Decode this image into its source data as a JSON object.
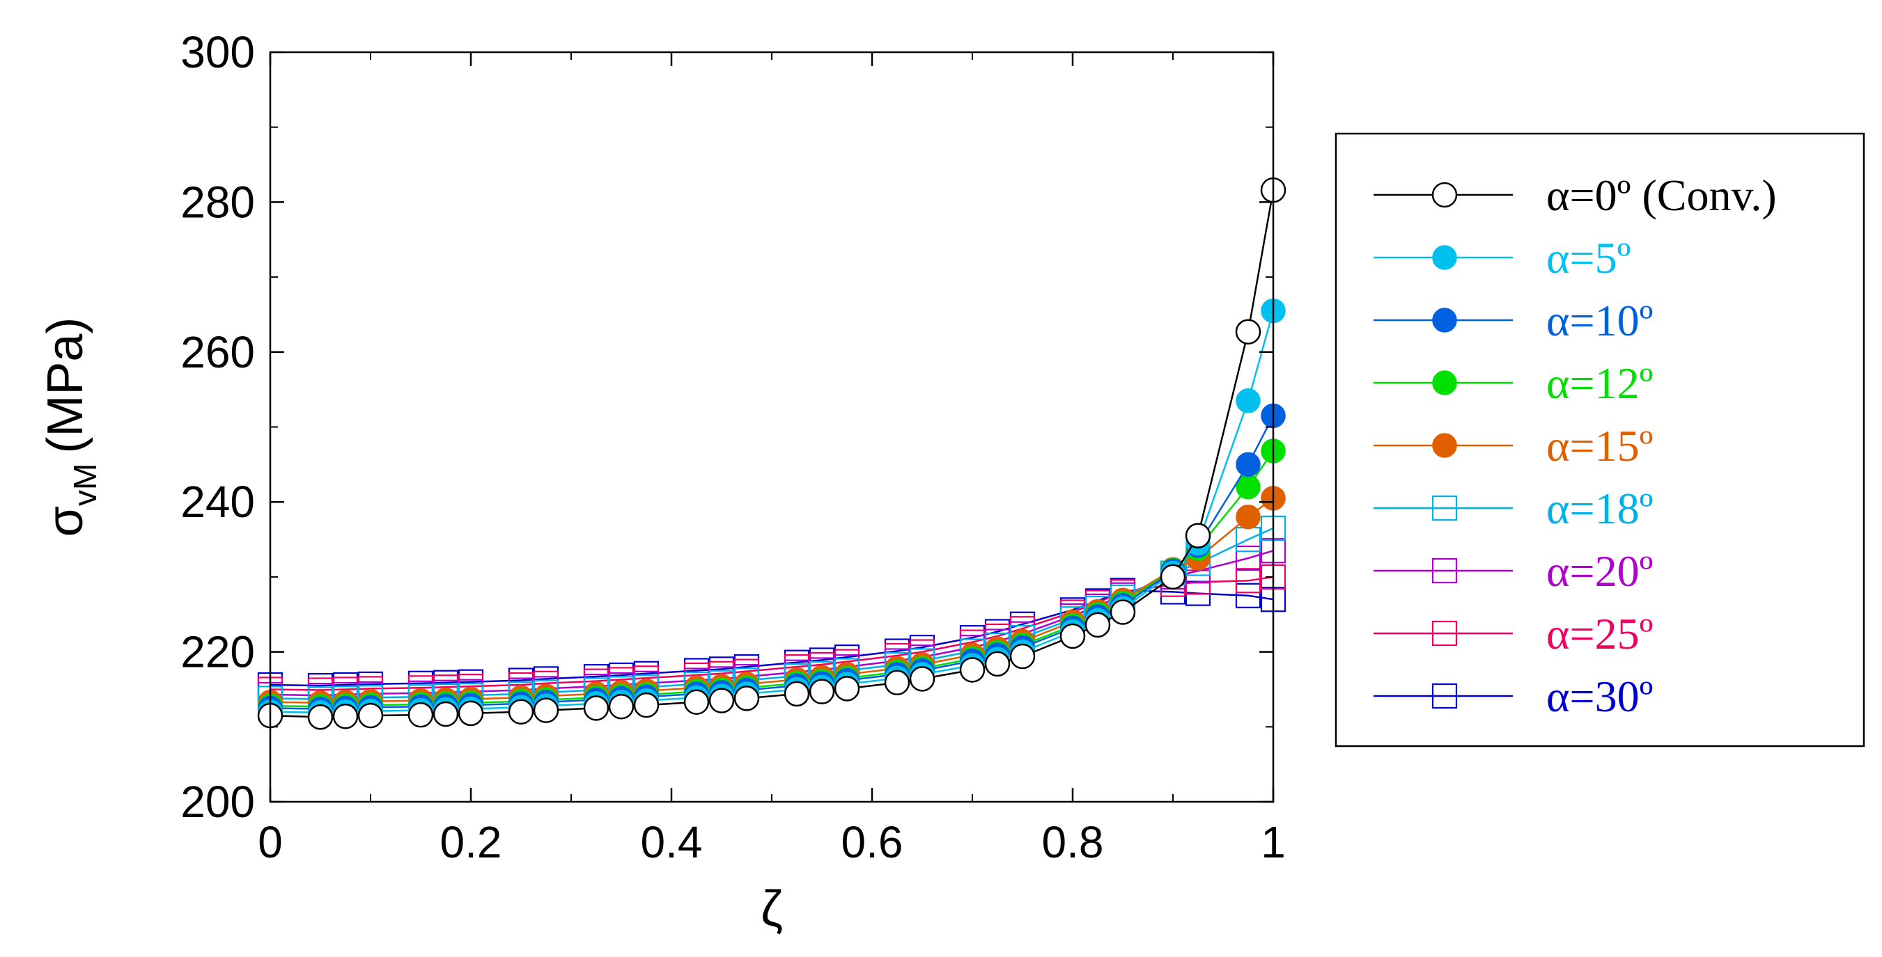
{
  "chart_data": {
    "type": "line",
    "xlabel": "ζ",
    "ylabel_main": "σ",
    "ylabel_sub": "vM",
    "ylabel_unit": "(MPa)",
    "xlim": [
      0,
      1
    ],
    "ylim": [
      200,
      300
    ],
    "x_ticks": [
      "0",
      "0.2",
      "0.4",
      "0.6",
      "0.8",
      "1"
    ],
    "y_ticks": [
      "200",
      "220",
      "240",
      "260",
      "280",
      "300"
    ],
    "grid": false,
    "legend_position": "right",
    "x": [
      0,
      0.05,
      0.075,
      0.1,
      0.15,
      0.175,
      0.2,
      0.25,
      0.275,
      0.325,
      0.35,
      0.375,
      0.425,
      0.45,
      0.475,
      0.525,
      0.55,
      0.575,
      0.625,
      0.65,
      0.7,
      0.725,
      0.75,
      0.8,
      0.825,
      0.85,
      0.9,
      0.925,
      0.975,
      1.0
    ],
    "series": [
      {
        "name": "α=0º (Conv.)",
        "color": "#000000",
        "marker": "open-circle",
        "values": [
          211.5,
          211.3,
          211.4,
          211.5,
          211.6,
          211.7,
          211.8,
          212.0,
          212.2,
          212.5,
          212.7,
          212.9,
          213.3,
          213.5,
          213.8,
          214.4,
          214.7,
          215.1,
          215.9,
          216.4,
          217.6,
          218.4,
          219.4,
          222.1,
          223.6,
          225.3,
          230.0,
          235.5,
          262.7,
          281.6
        ]
      },
      {
        "name": "α=5º",
        "color": "#00c0f0",
        "marker": "filled-circle",
        "values": [
          212.0,
          211.9,
          212.0,
          212.1,
          212.2,
          212.3,
          212.4,
          212.6,
          212.8,
          213.1,
          213.3,
          213.5,
          213.9,
          214.1,
          214.4,
          215.0,
          215.3,
          215.7,
          216.5,
          217.0,
          218.2,
          219.0,
          220.0,
          222.7,
          224.2,
          225.8,
          230.5,
          234.5,
          253.5,
          265.5
        ]
      },
      {
        "name": "α=10º",
        "color": "#0060e0",
        "marker": "filled-circle",
        "values": [
          212.5,
          212.4,
          212.5,
          212.6,
          212.7,
          212.8,
          212.9,
          213.1,
          213.3,
          213.6,
          213.8,
          214.0,
          214.4,
          214.6,
          214.9,
          215.5,
          215.8,
          216.2,
          217.0,
          217.5,
          218.8,
          219.6,
          220.6,
          223.2,
          224.7,
          226.2,
          230.8,
          234.2,
          245.0,
          251.5
        ]
      },
      {
        "name": "α=12º",
        "color": "#00e000",
        "marker": "filled-circle",
        "values": [
          212.8,
          212.7,
          212.8,
          212.9,
          213.0,
          213.1,
          213.2,
          213.4,
          213.6,
          213.9,
          214.1,
          214.3,
          214.7,
          214.9,
          215.2,
          215.8,
          216.1,
          216.5,
          217.3,
          217.8,
          219.1,
          219.9,
          220.9,
          223.5,
          225.0,
          226.5,
          230.9,
          233.8,
          242.0,
          246.8
        ]
      },
      {
        "name": "α=15º",
        "color": "#e06000",
        "marker": "filled-circle",
        "values": [
          213.3,
          213.2,
          213.3,
          213.4,
          213.5,
          213.6,
          213.7,
          213.9,
          214.1,
          214.4,
          214.6,
          214.8,
          215.2,
          215.4,
          215.7,
          216.3,
          216.6,
          217.0,
          217.8,
          218.3,
          219.6,
          220.4,
          221.4,
          224.0,
          225.4,
          226.9,
          231.0,
          232.5,
          238.0,
          240.5
        ]
      },
      {
        "name": "α=18º",
        "color": "#00b0e8",
        "marker": "open-square",
        "values": [
          213.8,
          213.7,
          213.8,
          213.9,
          214.0,
          214.1,
          214.2,
          214.4,
          214.6,
          214.9,
          215.1,
          215.3,
          215.7,
          215.9,
          216.2,
          216.8,
          217.1,
          217.5,
          218.3,
          218.8,
          220.1,
          220.9,
          221.9,
          224.4,
          225.8,
          227.3,
          230.5,
          231.8,
          235.0,
          236.5
        ]
      },
      {
        "name": "α=20º",
        "color": "#b000d0",
        "marker": "open-square",
        "values": [
          214.3,
          214.2,
          214.3,
          214.4,
          214.5,
          214.6,
          214.7,
          214.9,
          215.1,
          215.4,
          215.6,
          215.8,
          216.2,
          216.4,
          216.7,
          217.3,
          217.6,
          218.0,
          218.8,
          219.3,
          220.6,
          221.4,
          222.4,
          224.8,
          226.1,
          227.6,
          230.0,
          230.8,
          232.5,
          233.5
        ]
      },
      {
        "name": "α=25º",
        "color": "#f00060",
        "marker": "open-square",
        "values": [
          215.0,
          214.9,
          215.0,
          215.1,
          215.2,
          215.3,
          215.4,
          215.6,
          215.8,
          216.1,
          216.3,
          216.5,
          216.9,
          217.1,
          217.4,
          218.0,
          218.3,
          218.7,
          219.5,
          220.0,
          221.3,
          222.1,
          223.1,
          225.3,
          226.6,
          228.0,
          229.0,
          229.3,
          229.5,
          230.0
        ]
      },
      {
        "name": "α=30º",
        "color": "#0000d0",
        "marker": "open-square",
        "values": [
          215.6,
          215.5,
          215.6,
          215.7,
          215.8,
          215.9,
          216.0,
          216.2,
          216.4,
          216.7,
          216.9,
          217.1,
          217.5,
          217.7,
          218.0,
          218.6,
          218.9,
          219.3,
          220.1,
          220.6,
          221.9,
          222.7,
          223.7,
          225.6,
          226.8,
          228.2,
          228.0,
          227.8,
          227.5,
          227.0
        ]
      }
    ]
  }
}
